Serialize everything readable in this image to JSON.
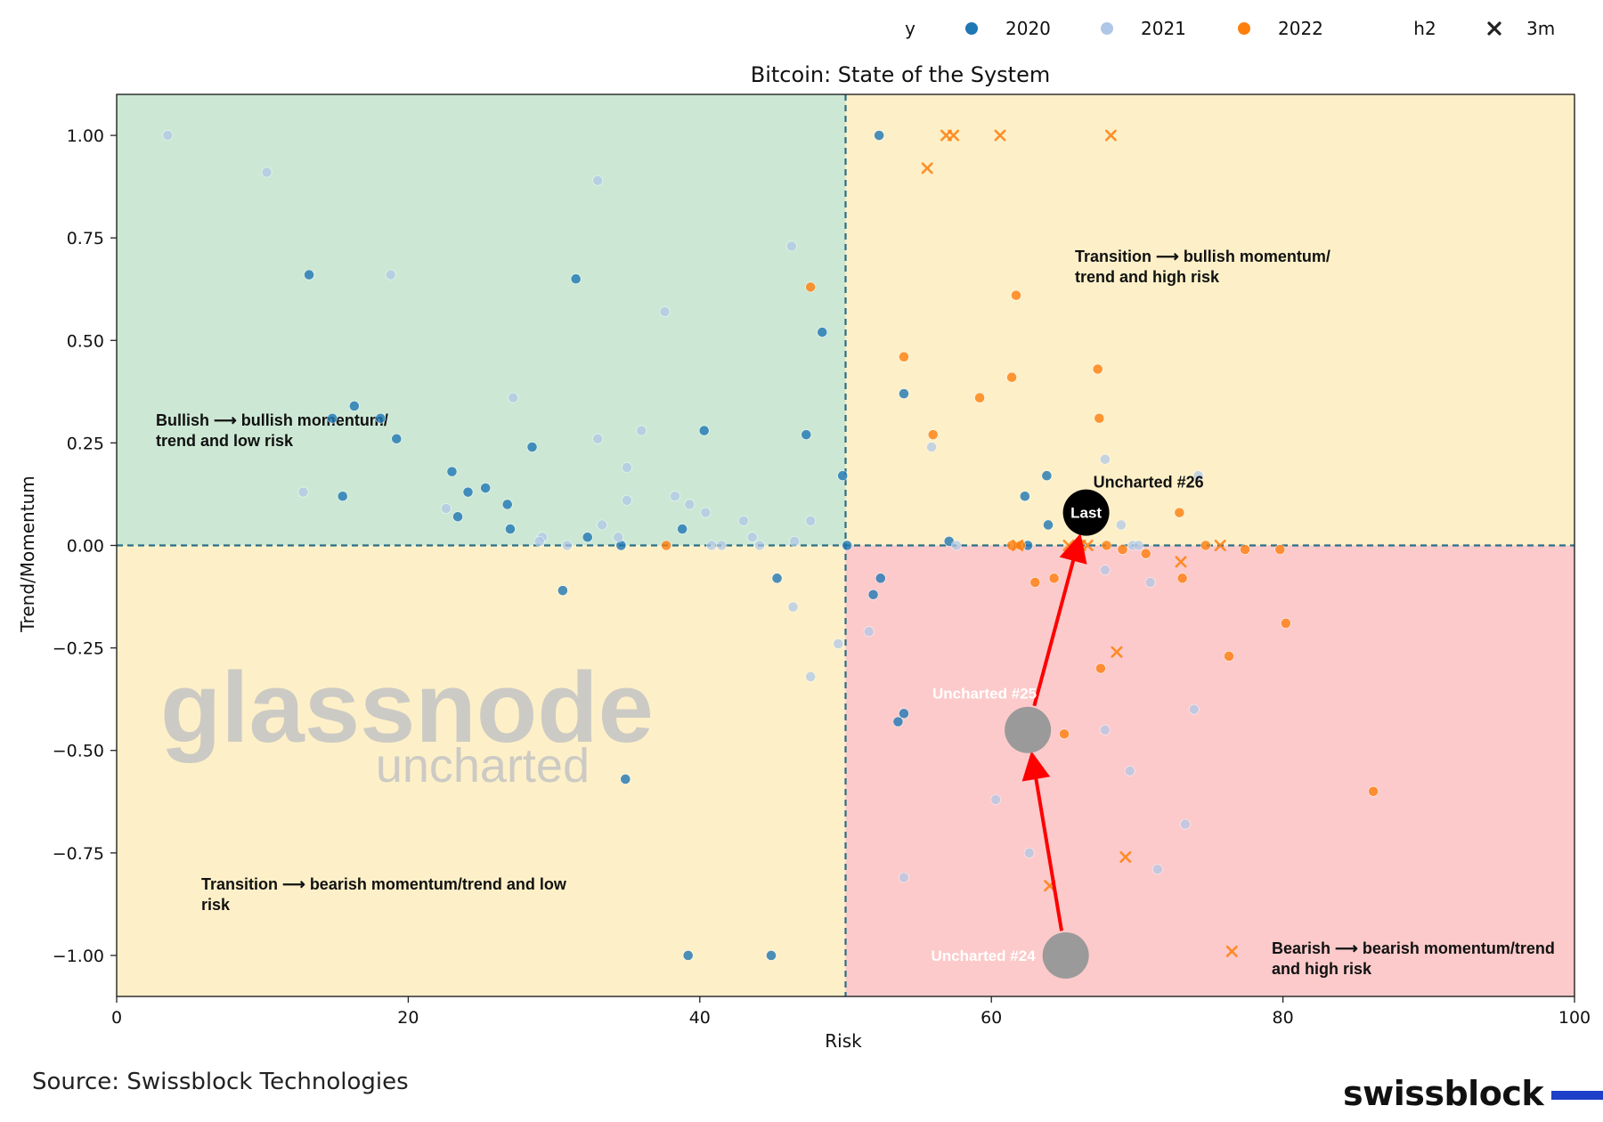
{
  "chart_data": {
    "type": "scatter",
    "title": "Bitcoin: State of the System",
    "xlabel": "Risk",
    "ylabel": "Trend/Momentum",
    "xlim": [
      0,
      100
    ],
    "ylim": [
      -1.1,
      1.1
    ],
    "x_ticks": [
      "0",
      "20",
      "40",
      "60",
      "80",
      "100"
    ],
    "y_ticks": [
      "1.00",
      "0.75",
      "0.50",
      "0.25",
      "0.00",
      "−0.25",
      "−0.50",
      "−0.75",
      "−1.00"
    ],
    "threshold_x": 50,
    "threshold_y": 0,
    "grid": false,
    "legend_position": "top-right, above plot",
    "legend": {
      "hue_title": "y",
      "hue_items": [
        {
          "label": "2020",
          "color": "#1f77b4"
        },
        {
          "label": "2021",
          "color": "#aec7e8"
        },
        {
          "label": "2022",
          "color": "#ff7f0e"
        }
      ],
      "style_title": "h2",
      "style_items": [
        {
          "label": "3m",
          "marker": "x"
        }
      ]
    },
    "quadrants": [
      {
        "label": "Bullish ⟶ bullish momentum/\ntrend and low risk",
        "color": "#cce8d4"
      },
      {
        "label": "Transition ⟶ bullish momentum/\ntrend and high risk",
        "color": "#fdf0c8"
      },
      {
        "label": "Transition ⟶ bearish momentum/trend and low\nrisk",
        "color": "#fdf0c8"
      },
      {
        "label": "Bearish ⟶ bearish momentum/trend\nand high risk",
        "color": "#fccaca"
      }
    ],
    "series": [
      {
        "name": "2020",
        "color": "#1f77b4",
        "points": [
          [
            13.2,
            0.66
          ],
          [
            14.8,
            0.31
          ],
          [
            15.5,
            0.12
          ],
          [
            16.3,
            0.34
          ],
          [
            18.1,
            0.31
          ],
          [
            19.2,
            0.26
          ],
          [
            23.0,
            0.18
          ],
          [
            23.4,
            0.07
          ],
          [
            24.1,
            0.13
          ],
          [
            25.3,
            0.14
          ],
          [
            26.8,
            0.1
          ],
          [
            27.0,
            0.04
          ],
          [
            28.5,
            0.24
          ],
          [
            30.6,
            -0.11
          ],
          [
            31.5,
            0.65
          ],
          [
            32.3,
            0.02
          ],
          [
            34.6,
            0.0
          ],
          [
            34.9,
            -0.57
          ],
          [
            38.8,
            0.04
          ],
          [
            39.2,
            -1.0
          ],
          [
            40.3,
            0.28
          ],
          [
            44.9,
            -1.0
          ],
          [
            45.3,
            -0.08
          ],
          [
            47.3,
            0.27
          ],
          [
            48.4,
            0.52
          ],
          [
            49.8,
            0.17
          ],
          [
            50.1,
            0.0
          ],
          [
            51.9,
            -0.12
          ],
          [
            52.4,
            -0.08
          ],
          [
            52.3,
            1.0
          ],
          [
            53.6,
            -0.43
          ],
          [
            54.0,
            -0.41
          ],
          [
            54.0,
            0.37
          ],
          [
            57.1,
            0.01
          ],
          [
            62.3,
            0.12
          ],
          [
            62.5,
            0.0
          ],
          [
            63.9,
            0.05
          ],
          [
            63.8,
            0.17
          ]
        ]
      },
      {
        "name": "2021",
        "color": "#aec7e8",
        "points": [
          [
            3.5,
            1.0
          ],
          [
            10.3,
            0.91
          ],
          [
            12.8,
            0.13
          ],
          [
            18.8,
            0.66
          ],
          [
            22.6,
            0.09
          ],
          [
            27.2,
            0.36
          ],
          [
            29.2,
            0.02
          ],
          [
            29.0,
            0.01
          ],
          [
            30.9,
            0.0
          ],
          [
            33.0,
            0.89
          ],
          [
            33.0,
            0.26
          ],
          [
            33.3,
            0.05
          ],
          [
            34.4,
            0.02
          ],
          [
            35.0,
            0.19
          ],
          [
            35.0,
            0.11
          ],
          [
            36.0,
            0.28
          ],
          [
            37.6,
            0.57
          ],
          [
            38.3,
            0.12
          ],
          [
            39.3,
            0.1
          ],
          [
            40.4,
            0.08
          ],
          [
            40.8,
            0.0
          ],
          [
            41.5,
            0.0
          ],
          [
            43.0,
            0.06
          ],
          [
            43.6,
            0.02
          ],
          [
            44.1,
            0.0
          ],
          [
            46.3,
            0.73
          ],
          [
            46.4,
            -0.15
          ],
          [
            46.5,
            0.01
          ],
          [
            47.6,
            0.06
          ],
          [
            47.6,
            -0.32
          ],
          [
            49.5,
            -0.24
          ],
          [
            51.6,
            -0.21
          ],
          [
            54.0,
            -0.81
          ],
          [
            55.9,
            0.24
          ],
          [
            57.6,
            0.0
          ],
          [
            60.3,
            -0.62
          ],
          [
            62.6,
            -0.75
          ],
          [
            67.8,
            0.21
          ],
          [
            67.8,
            -0.06
          ],
          [
            67.8,
            -0.45
          ],
          [
            68.9,
            0.05
          ],
          [
            69.5,
            -0.55
          ],
          [
            70.9,
            -0.09
          ],
          [
            71.4,
            -0.79
          ],
          [
            73.3,
            -0.68
          ],
          [
            73.9,
            -0.4
          ],
          [
            74.2,
            0.17
          ],
          [
            69.7,
            0.0
          ],
          [
            70.1,
            0.0
          ]
        ]
      },
      {
        "name": "2022",
        "color": "#ff7f0e",
        "points": [
          [
            37.7,
            0.0
          ],
          [
            47.6,
            0.63
          ],
          [
            54.0,
            0.46
          ],
          [
            56.0,
            0.27
          ],
          [
            59.2,
            0.36
          ],
          [
            61.4,
            0.41
          ],
          [
            61.7,
            0.61
          ],
          [
            61.4,
            0.0
          ],
          [
            62.0,
            0.0
          ],
          [
            63.0,
            -0.09
          ],
          [
            64.3,
            -0.08
          ],
          [
            65.0,
            -0.46
          ],
          [
            67.3,
            0.43
          ],
          [
            67.4,
            0.31
          ],
          [
            67.5,
            -0.3
          ],
          [
            67.9,
            0.0
          ],
          [
            69.0,
            -0.01
          ],
          [
            70.6,
            -0.02
          ],
          [
            72.9,
            0.08
          ],
          [
            73.1,
            -0.08
          ],
          [
            74.7,
            0.0
          ],
          [
            77.4,
            -0.01
          ],
          [
            76.3,
            -0.27
          ],
          [
            79.8,
            -0.01
          ],
          [
            80.2,
            -0.19
          ],
          [
            86.2,
            -0.6
          ]
        ]
      },
      {
        "name": "3m",
        "color": "#ff7f0e",
        "marker": "x",
        "points": [
          [
            55.6,
            0.92
          ],
          [
            56.9,
            1.0
          ],
          [
            57.4,
            1.0
          ],
          [
            60.6,
            1.0
          ],
          [
            68.2,
            1.0
          ],
          [
            61.8,
            0.0
          ],
          [
            65.3,
            0.0
          ],
          [
            66.1,
            0.0
          ],
          [
            66.6,
            0.0
          ],
          [
            68.6,
            -0.26
          ],
          [
            69.2,
            -0.76
          ],
          [
            64.0,
            -0.83
          ],
          [
            73.0,
            -0.04
          ],
          [
            75.7,
            0.0
          ],
          [
            76.5,
            -0.99
          ]
        ]
      }
    ],
    "highlights": [
      {
        "name": "Uncharted #24",
        "x": 65.1,
        "y": -1.0,
        "color": "#9a9a9a"
      },
      {
        "name": "Uncharted #25",
        "x": 62.5,
        "y": -0.45,
        "color": "#9a9a9a"
      },
      {
        "name": "Uncharted #26",
        "marker_label": "Last",
        "x": 66.5,
        "y": 0.08,
        "color": "#000000"
      }
    ],
    "arrows": [
      {
        "from": [
          65.1,
          -1.0
        ],
        "to": [
          62.5,
          -0.45
        ],
        "color": "#ff0000"
      },
      {
        "from": [
          62.5,
          -0.45
        ],
        "to": [
          66.5,
          0.08
        ],
        "color": "#ff0000"
      }
    ]
  },
  "watermark": {
    "line1": "glassnode",
    "line2": "uncharted"
  },
  "footer": {
    "source": "Source: Swissblock Technologies",
    "brand": "swissblock"
  }
}
